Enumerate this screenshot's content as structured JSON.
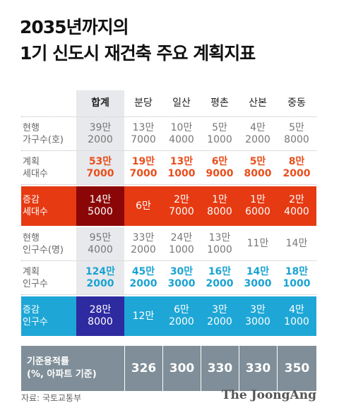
{
  "title": {
    "line1": "2035년까지의",
    "line2": "1기 신도시 재건축 주요 계획지표"
  },
  "header": {
    "total": "합계",
    "cities": [
      "분당",
      "일산",
      "평촌",
      "산본",
      "중동"
    ]
  },
  "rows": {
    "current_households": {
      "label": "현행\n가구수(호)",
      "total": "39만\n2000",
      "values": [
        "13만\n7000",
        "10만\n4000",
        "5만\n1000",
        "4만\n2000",
        "5만\n8000"
      ]
    },
    "planned_households": {
      "label": "계획\n세대수",
      "total": "53만\n7000",
      "values": [
        "19만\n7000",
        "13만\n1000",
        "6만\n9000",
        "5만\n8000",
        "8만\n2000"
      ]
    },
    "increase_households": {
      "label": "증감\n세대수",
      "total": "14만\n5000",
      "values": [
        "6만",
        "2만\n7000",
        "1만\n8000",
        "1만\n6000",
        "2만\n4000"
      ]
    },
    "current_population": {
      "label": "현행\n인구수(명)",
      "total": "95만\n4000",
      "values": [
        "33만\n2000",
        "24만\n1000",
        "13만\n1000",
        "11만",
        "14만"
      ]
    },
    "planned_population": {
      "label": "계획\n인구수",
      "total": "124만\n2000",
      "values": [
        "45만\n2000",
        "30만\n3000",
        "16만\n2000",
        "14만\n3000",
        "18만\n1000"
      ]
    },
    "increase_population": {
      "label": "증감\n인구수",
      "total": "28만\n8000",
      "values": [
        "12만",
        "6만\n2000",
        "3만\n2000",
        "3만\n3000",
        "4만\n1000"
      ]
    }
  },
  "far": {
    "label": "기준용적률\n(%, 아파트 기준)",
    "values": [
      "326",
      "300",
      "330",
      "330",
      "350"
    ]
  },
  "footer": {
    "source": "자료: 국토교통부",
    "brand": "The JoongAng"
  },
  "colors": {
    "household_accent": "#e94e1b",
    "household_increase": "#e63a12",
    "household_increase_total": "#8b0707",
    "population_accent": "#1aa3d2",
    "population_increase": "#1ea7d6",
    "population_increase_total": "#2e2aa0",
    "far_band": "#7f8e98",
    "total_column": "#e8e9ec"
  }
}
